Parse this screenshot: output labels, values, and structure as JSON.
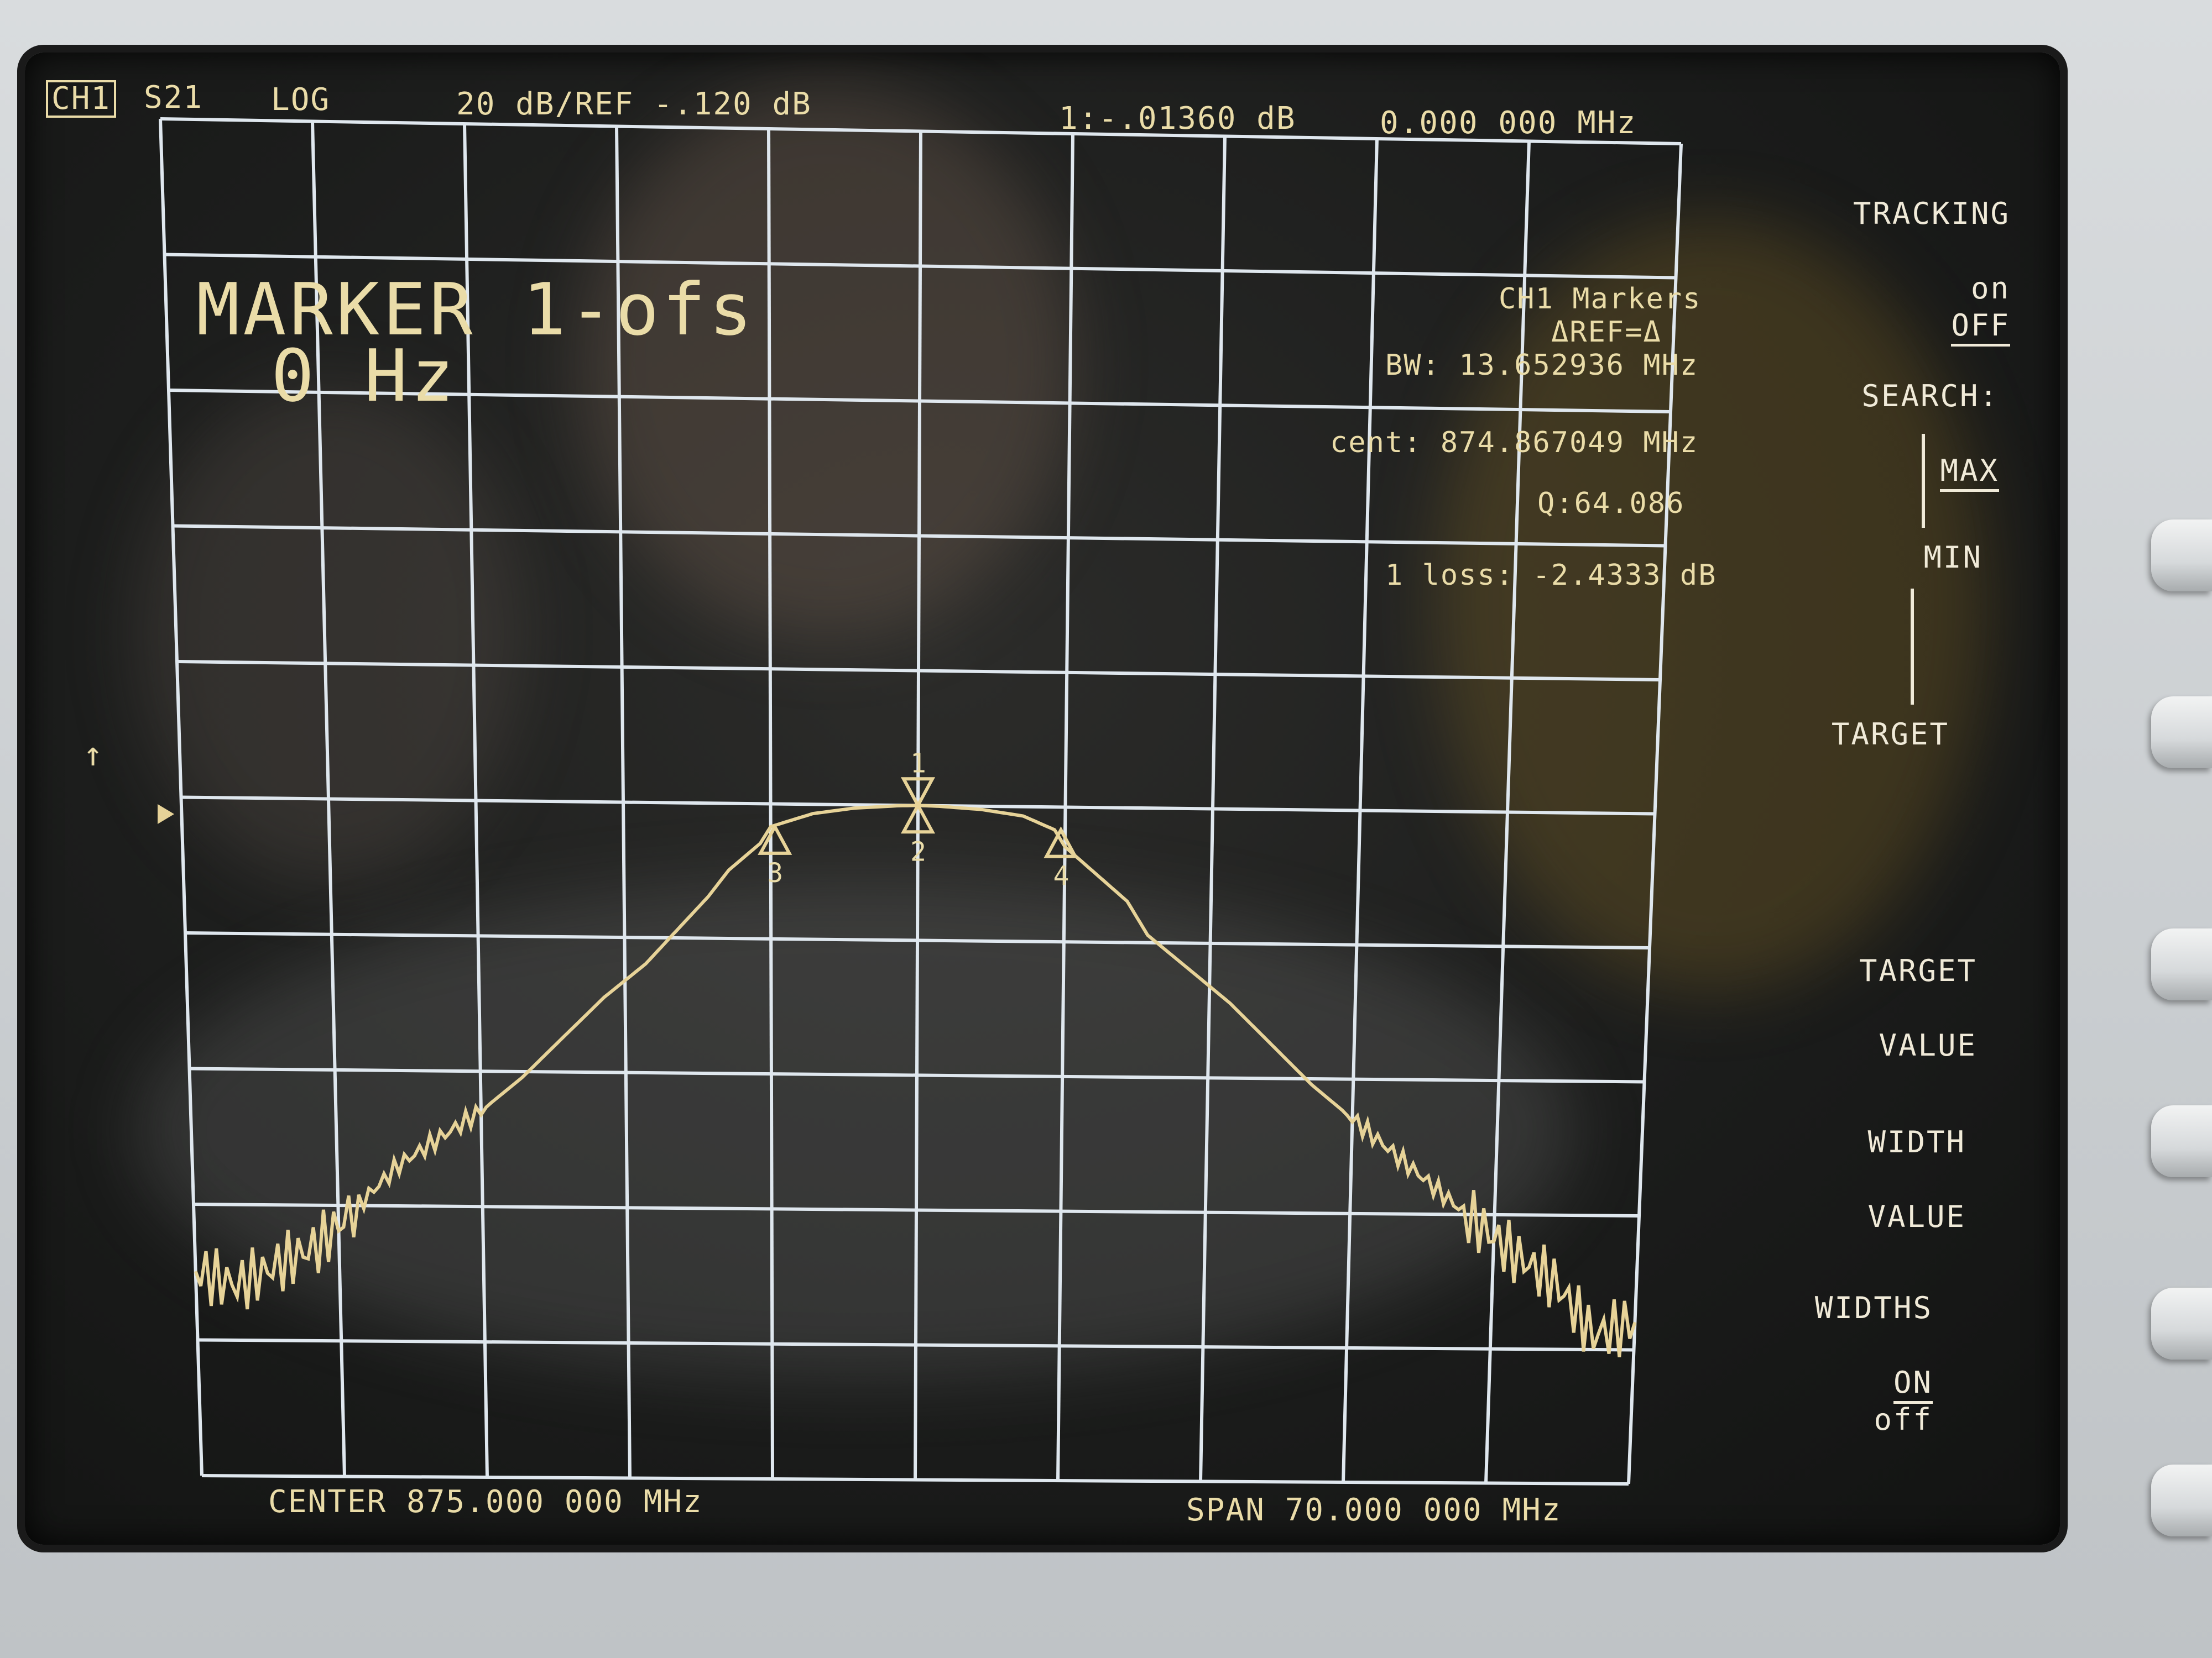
{
  "header": {
    "channel": "CH1",
    "param": "S21",
    "format": "LOG",
    "scale_ref": "20 dB/REF -.120 dB",
    "marker_readout": "1:-.01360 dB",
    "marker_freq": "0.000 000 MHz"
  },
  "marker_banner": {
    "line1": "MARKER 1-ofs",
    "line2": "0 Hz"
  },
  "marker_stats": {
    "title": "CH1 Markers",
    "ref": "ΔREF=Δ",
    "bw": "BW: 13.652936 MHz",
    "cent": "cent: 874.867049 MHz",
    "q": "Q:64.086",
    "loss": "1 loss: -2.4333 dB"
  },
  "softkeys": {
    "tracking": "TRACKING",
    "tracking_on": "on",
    "tracking_off": "OFF",
    "search": "SEARCH:",
    "max": "MAX",
    "min": "MIN",
    "target": "TARGET",
    "target_value_1": "TARGET",
    "target_value_2": "VALUE",
    "width_value_1": "WIDTH",
    "width_value_2": "VALUE",
    "widths": "WIDTHS",
    "widths_on": "ON",
    "widths_off": "off"
  },
  "footer": {
    "center": "CENTER 875.000 000 MHz",
    "span": "SPAN 70.000 000 MHz"
  },
  "markers": [
    "1",
    "2",
    "3",
    "4"
  ],
  "ref_arrow": "↑",
  "chart_data": {
    "type": "line",
    "grid": true,
    "y_divisions": 10,
    "x_divisions": 10,
    "y_scale_db_per_div": 20,
    "ref_db": -0.12,
    "x_center_mhz": 875,
    "x_span_mhz": 70,
    "series": [
      {
        "x": [
          840,
          842,
          844,
          846,
          848,
          850,
          852,
          854,
          856,
          858,
          860,
          862,
          863.5,
          865,
          866,
          867.5,
          868,
          870,
          872,
          874,
          875,
          876,
          878,
          880,
          881.5,
          882,
          883.5,
          885,
          886,
          888,
          890,
          892,
          894,
          896,
          898,
          900,
          902,
          904,
          906,
          908,
          910
        ],
        "y": [
          -70,
          -72,
          -69,
          -66,
          -60,
          -54,
          -50,
          -46,
          -41,
          -35,
          -29,
          -24,
          -19,
          -14,
          -10,
          -6,
          -3.5,
          -1.5,
          -0.6,
          -0.2,
          -0.1,
          -0.2,
          -0.6,
          -1.5,
          -3.5,
          -6,
          -10,
          -14,
          -19,
          -24,
          -29,
          -35,
          -41,
          -46,
          -51,
          -56,
          -61,
          -66,
          -70,
          -78,
          -76
        ]
      }
    ],
    "colors": {
      "trace": "#e7d398",
      "grid": "#dfe7ee",
      "text": "#eadca8"
    }
  }
}
